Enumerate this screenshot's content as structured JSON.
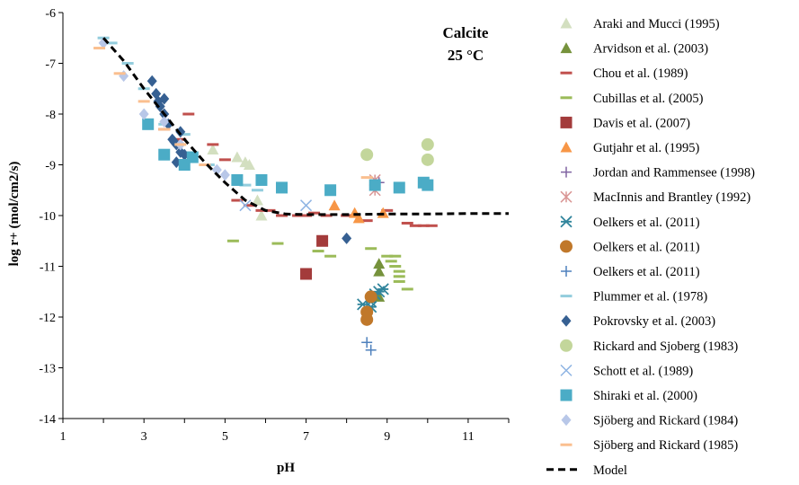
{
  "chart_data": {
    "type": "scatter",
    "xlabel": "pH",
    "ylabel": "log r+ (mol/cm2/s)",
    "xlim": [
      1,
      12
    ],
    "ylim": [
      -14,
      -6
    ],
    "xticks": [
      "1",
      "3",
      "5",
      "7",
      "9",
      "11"
    ],
    "yticks": [
      "-6",
      "-7",
      "-8",
      "-9",
      "-10",
      "-11",
      "-12",
      "-13",
      "-14"
    ],
    "annotation_line1": "Calcite",
    "annotation_line2": "25 °C",
    "grid": false,
    "legend_position": "right",
    "series": [
      {
        "name": "Araki and Mucci (1995)",
        "marker": "triangle",
        "color": "#d3dfc0",
        "points": [
          [
            4.7,
            -8.7
          ],
          [
            5.3,
            -8.85
          ],
          [
            5.6,
            -9.0
          ],
          [
            5.5,
            -8.95
          ],
          [
            5.8,
            -9.7
          ],
          [
            5.9,
            -10.0
          ]
        ]
      },
      {
        "name": "Arvidson et al. (2003)",
        "marker": "triangle",
        "color": "#76923c",
        "points": [
          [
            8.8,
            -10.95
          ],
          [
            8.8,
            -11.1
          ],
          [
            8.8,
            -11.6
          ]
        ]
      },
      {
        "name": "Chou et al. (1989)",
        "marker": "dash",
        "color": "#c0504d",
        "points": [
          [
            3.5,
            -8.3
          ],
          [
            3.9,
            -8.5
          ],
          [
            4.1,
            -8.0
          ],
          [
            4.7,
            -8.6
          ],
          [
            5.0,
            -8.9
          ],
          [
            5.3,
            -9.7
          ],
          [
            5.6,
            -9.8
          ],
          [
            5.9,
            -9.9
          ],
          [
            6.1,
            -9.9
          ],
          [
            6.4,
            -10.0
          ],
          [
            6.8,
            -10.0
          ],
          [
            7.0,
            -10.0
          ],
          [
            7.2,
            -9.95
          ],
          [
            7.5,
            -10.0
          ],
          [
            8.0,
            -10.0
          ],
          [
            8.5,
            -10.1
          ],
          [
            9.0,
            -9.9
          ],
          [
            9.5,
            -10.15
          ],
          [
            9.7,
            -10.2
          ],
          [
            9.9,
            -10.2
          ],
          [
            10.1,
            -10.2
          ]
        ]
      },
      {
        "name": "Cubillas et al. (2005)",
        "marker": "dash",
        "color": "#9bbb59",
        "points": [
          [
            5.2,
            -10.5
          ],
          [
            6.3,
            -10.55
          ],
          [
            7.3,
            -10.7
          ],
          [
            7.6,
            -10.8
          ],
          [
            8.6,
            -10.65
          ],
          [
            9.0,
            -10.8
          ],
          [
            9.1,
            -10.9
          ],
          [
            9.2,
            -11.0
          ],
          [
            9.3,
            -11.1
          ],
          [
            9.3,
            -11.2
          ],
          [
            9.3,
            -11.3
          ],
          [
            9.5,
            -11.45
          ],
          [
            9.2,
            -10.8
          ]
        ]
      },
      {
        "name": "Davis et al. (2007)",
        "marker": "square",
        "color": "#a33b3b",
        "points": [
          [
            7.4,
            -10.5
          ],
          [
            7.0,
            -11.15
          ]
        ]
      },
      {
        "name": "Gutjahr et al. (1995)",
        "marker": "triangle",
        "color": "#f79646",
        "points": [
          [
            7.7,
            -9.8
          ],
          [
            8.2,
            -9.95
          ],
          [
            8.3,
            -10.05
          ],
          [
            8.9,
            -9.95
          ]
        ]
      },
      {
        "name": "Jordan and Rammensee (1998)",
        "marker": "plus",
        "color": "#8064a2",
        "points": [
          [
            8.7,
            -9.3
          ],
          [
            8.8,
            -9.35
          ]
        ]
      },
      {
        "name": "MacInnis and Brantley (1992)",
        "marker": "star",
        "color": "#d99594",
        "points": [
          [
            8.7,
            -9.3
          ],
          [
            8.7,
            -9.5
          ]
        ]
      },
      {
        "name": "Oelkers et al. (2011)",
        "marker": "asterisk",
        "color": "#31859c",
        "points": [
          [
            8.4,
            -11.75
          ],
          [
            8.6,
            -11.7
          ],
          [
            8.7,
            -11.55
          ],
          [
            8.8,
            -11.5
          ],
          [
            8.9,
            -11.45
          ],
          [
            8.6,
            -11.8
          ]
        ]
      },
      {
        "name": "Oelkers et al. (2011)",
        "marker": "circle",
        "color": "#c0782a",
        "points": [
          [
            8.6,
            -11.6
          ],
          [
            8.5,
            -11.9
          ],
          [
            8.5,
            -12.05
          ]
        ]
      },
      {
        "name": "Oelkers et al. (2011)",
        "marker": "plus",
        "color": "#4f81bd",
        "points": [
          [
            8.5,
            -12.5
          ],
          [
            8.6,
            -12.65
          ]
        ]
      },
      {
        "name": "Plummer et al. (1978)",
        "marker": "dash",
        "color": "#93cddd",
        "points": [
          [
            2.0,
            -6.5
          ],
          [
            2.2,
            -6.6
          ],
          [
            2.6,
            -7.0
          ],
          [
            3.0,
            -7.5
          ],
          [
            3.5,
            -8.2
          ],
          [
            4.0,
            -8.4
          ],
          [
            4.6,
            -9.0
          ],
          [
            5.5,
            -9.4
          ],
          [
            5.8,
            -9.5
          ]
        ]
      },
      {
        "name": "Pokrovsky et al. (2003)",
        "marker": "diamond",
        "color": "#366092",
        "points": [
          [
            3.2,
            -7.35
          ],
          [
            3.3,
            -7.6
          ],
          [
            3.35,
            -7.75
          ],
          [
            3.4,
            -7.85
          ],
          [
            3.5,
            -8.0
          ],
          [
            3.5,
            -7.7
          ],
          [
            3.6,
            -8.2
          ],
          [
            3.7,
            -8.5
          ],
          [
            3.75,
            -8.55
          ],
          [
            3.8,
            -8.6
          ],
          [
            3.9,
            -8.75
          ],
          [
            3.8,
            -8.95
          ],
          [
            3.9,
            -8.35
          ],
          [
            4.0,
            -8.8
          ],
          [
            8.0,
            -10.45
          ]
        ]
      },
      {
        "name": "Rickard and Sjoberg (1983)",
        "marker": "circle",
        "color": "#c3d69b",
        "points": [
          [
            8.5,
            -8.8
          ],
          [
            10.0,
            -8.6
          ],
          [
            10.0,
            -8.9
          ]
        ]
      },
      {
        "name": "Schott et al. (1989)",
        "marker": "x",
        "color": "#8eb4e3",
        "points": [
          [
            5.5,
            -9.8
          ],
          [
            7.0,
            -9.8
          ]
        ]
      },
      {
        "name": "Shiraki et al. (2000)",
        "marker": "square",
        "color": "#4bacc6",
        "points": [
          [
            3.1,
            -8.2
          ],
          [
            3.5,
            -8.8
          ],
          [
            4.0,
            -9.0
          ],
          [
            4.2,
            -8.85
          ],
          [
            5.3,
            -9.3
          ],
          [
            5.9,
            -9.3
          ],
          [
            6.4,
            -9.45
          ],
          [
            7.6,
            -9.5
          ],
          [
            8.7,
            -9.4
          ],
          [
            9.3,
            -9.45
          ],
          [
            9.9,
            -9.35
          ],
          [
            10.0,
            -9.4
          ]
        ]
      },
      {
        "name": "Sjöberg and Rickard (1984)",
        "marker": "diamond",
        "color": "#b8c7e8",
        "points": [
          [
            2.0,
            -6.6
          ],
          [
            2.5,
            -7.25
          ],
          [
            3.0,
            -8.0
          ],
          [
            3.5,
            -8.15
          ],
          [
            3.9,
            -8.6
          ],
          [
            4.8,
            -9.1
          ],
          [
            5.0,
            -9.2
          ]
        ]
      },
      {
        "name": "Sjöberg and Rickard (1985)",
        "marker": "dash",
        "color": "#fabf8f",
        "points": [
          [
            1.9,
            -6.7
          ],
          [
            2.4,
            -7.2
          ],
          [
            3.0,
            -7.75
          ],
          [
            3.5,
            -8.3
          ],
          [
            3.9,
            -8.6
          ],
          [
            4.5,
            -9.0
          ],
          [
            8.5,
            -9.25
          ]
        ]
      }
    ],
    "model": {
      "name": "Model",
      "color": "#000000",
      "points": [
        [
          2.0,
          -6.5
        ],
        [
          2.5,
          -6.95
        ],
        [
          3.0,
          -7.5
        ],
        [
          3.5,
          -8.0
        ],
        [
          4.0,
          -8.5
        ],
        [
          4.5,
          -8.95
        ],
        [
          5.0,
          -9.35
        ],
        [
          5.5,
          -9.7
        ],
        [
          6.0,
          -9.9
        ],
        [
          6.5,
          -9.97
        ],
        [
          7.0,
          -9.98
        ],
        [
          8.0,
          -9.98
        ],
        [
          9.0,
          -9.97
        ],
        [
          10.0,
          -9.97
        ],
        [
          11.0,
          -9.96
        ],
        [
          12.0,
          -9.96
        ]
      ]
    }
  }
}
